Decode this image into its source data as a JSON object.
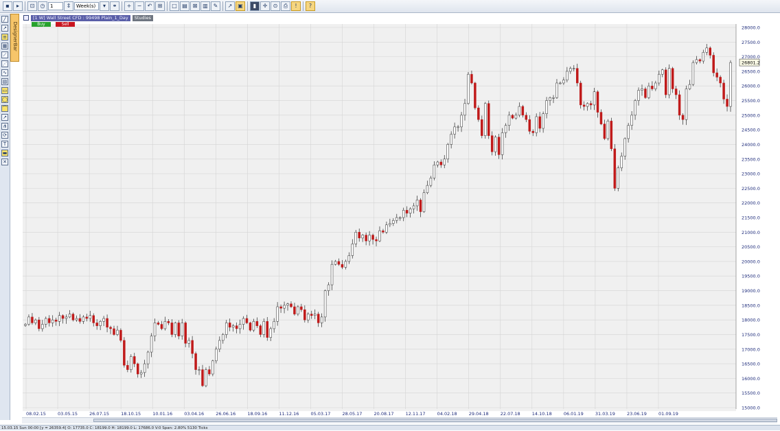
{
  "toolbar": {
    "period_value": "1",
    "period_unit": "Week(s)"
  },
  "designer": {
    "label": "DesignerBar"
  },
  "chart_header": {
    "instrument": "[1 W] Wall Street CFD : 99498 Plain_1_Day",
    "studies_label": "Studies",
    "buy_label": "Buy",
    "sell_label": "Sell"
  },
  "status_bar": {
    "text": "15.03.15 Sun 00:00 [y = 26359.4]      O: 17735.0 C: 18199.0 H: 18199.0 L: 17686.0 V:0 Span: 2.80% 5130 Ticks"
  },
  "chart_data": {
    "type": "candlestick",
    "title": "",
    "xlabel": "",
    "ylabel": "",
    "ylim": [
      15000,
      28000
    ],
    "y_ticks": [
      "28000.0",
      "27500.0",
      "27000.0",
      "26500.0",
      "26000.0",
      "25500.0",
      "25000.0",
      "24500.0",
      "24000.0",
      "23500.0",
      "23000.0",
      "22500.0",
      "22000.0",
      "21500.0",
      "21000.0",
      "20500.0",
      "20000.0",
      "19500.0",
      "19000.0",
      "18500.0",
      "18000.0",
      "17500.0",
      "17000.0",
      "16500.0",
      "16000.0",
      "15500.0",
      "15000.0"
    ],
    "x_ticks": [
      "08.02.15",
      "03.05.15",
      "26.07.15",
      "18.10.15",
      "10.01.16",
      "03.04.16",
      "26.06.16",
      "18.09.16",
      "11.12.16",
      "05.03.17",
      "28.05.17",
      "20.08.17",
      "12.11.17",
      "04.02.18",
      "29.04.18",
      "22.07.18",
      "14.10.18",
      "06.01.19",
      "31.03.19",
      "23.06.19",
      "01.09.19"
    ],
    "current_price_label": "26801.2",
    "colors": {
      "up": "#ffffff",
      "down": "#c01a1a",
      "wick": "#2a2a2a",
      "grid": "#d4d4d4",
      "axis_text": "#1c2a7a"
    },
    "grid": true,
    "series": [
      {
        "close": [
          17850,
          18100,
          17900,
          18000,
          17700,
          17850,
          18050,
          17900,
          18000,
          17950,
          18150,
          18050,
          18100,
          18200,
          18000,
          18050,
          17950,
          18100,
          18050,
          18150,
          17900,
          17800,
          17950,
          18050,
          17750,
          17700,
          17500,
          17650,
          17300,
          16450,
          16300,
          16750,
          16500,
          16150,
          16200,
          16500,
          16900,
          17450,
          17900,
          17850,
          17700,
          17950,
          17900,
          17500,
          17900,
          17450,
          17900,
          17200,
          17300,
          16850,
          16300,
          16300,
          15750,
          16300,
          16150,
          16600,
          17000,
          17300,
          17500,
          17900,
          17750,
          17800,
          17700,
          17850,
          18050,
          17900,
          17650,
          17950,
          17800,
          17500,
          17950,
          17400,
          17700,
          17950,
          18450,
          18400,
          18500,
          18550,
          18450,
          18200,
          18450,
          18350,
          18000,
          18200,
          18150,
          18200,
          17900,
          18100,
          19000,
          19200,
          19900,
          20000,
          19900,
          19800,
          20000,
          20200,
          20600,
          21000,
          20800,
          20900,
          20700,
          20900,
          20750,
          20700,
          21050,
          21000,
          21250,
          21300,
          21400,
          21500,
          21500,
          21750,
          21650,
          21800,
          21900,
          22100,
          21700,
          22350,
          22600,
          22850,
          23300,
          23400,
          23300,
          23500,
          24000,
          24350,
          24600,
          24600,
          25000,
          25400,
          26400,
          26100,
          25250,
          24850,
          24300,
          25400,
          24300,
          23750,
          24250,
          23650,
          24400,
          24650,
          25000,
          24900,
          25000,
          25300,
          25000,
          24850,
          24450,
          24400,
          24950,
          24550,
          25050,
          25500,
          25600,
          25600,
          26100,
          26100,
          26200,
          26500,
          26600,
          26600,
          26100,
          25350,
          25300,
          25400,
          25350,
          25800,
          25100,
          24700,
          24200,
          24800,
          23850,
          22500,
          23200,
          23600,
          24200,
          24650,
          25000,
          25500,
          25850,
          25900,
          25600,
          26000,
          25900,
          26100,
          26400,
          26550,
          25700,
          26600,
          25900,
          25700,
          25000,
          24850,
          25900,
          26050,
          26800,
          26900,
          26850,
          27150,
          27300,
          27050,
          26450,
          26300,
          26100,
          25550,
          25300,
          26801.2
        ]
      }
    ]
  }
}
